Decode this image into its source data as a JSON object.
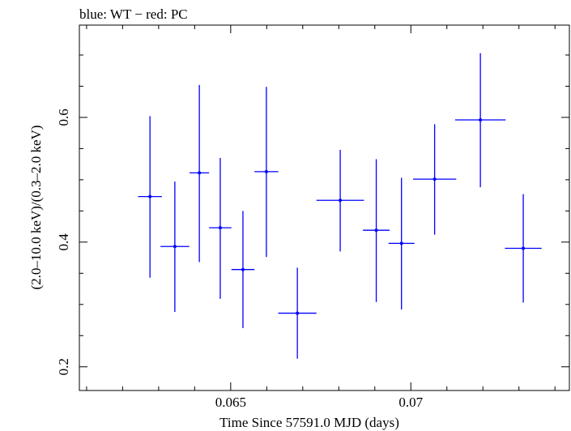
{
  "chart_data": {
    "type": "scatter",
    "title": "blue: WT − red: PC",
    "xlabel": "Time Since 57591.0 MJD (days)",
    "ylabel": "(2.0–10.0 keV)/(0.3–2.0 keV)",
    "xlim": [
      0.0608,
      0.0744
    ],
    "ylim": [
      0.162,
      0.748
    ],
    "x_ticks": [
      0.065,
      0.07
    ],
    "x_tick_labels": [
      "0.065",
      "0.07"
    ],
    "y_ticks": [
      0.2,
      0.4,
      0.6
    ],
    "y_tick_labels": [
      "0.2",
      "0.4",
      "0.6"
    ],
    "grid": false,
    "series": [
      {
        "color": "#0000ff",
        "points": [
          {
            "x": 0.06276,
            "xerr": 0.00033,
            "y": 0.473,
            "yerr_low": 0.13,
            "yerr_high": 0.129
          },
          {
            "x": 0.06345,
            "xerr": 0.0004,
            "y": 0.393,
            "yerr_low": 0.105,
            "yerr_high": 0.104
          },
          {
            "x": 0.06413,
            "xerr": 0.00027,
            "y": 0.511,
            "yerr_low": 0.143,
            "yerr_high": 0.141
          },
          {
            "x": 0.06471,
            "xerr": 0.00031,
            "y": 0.423,
            "yerr_low": 0.114,
            "yerr_high": 0.112
          },
          {
            "x": 0.06534,
            "xerr": 0.00032,
            "y": 0.356,
            "yerr_low": 0.094,
            "yerr_high": 0.094
          },
          {
            "x": 0.06599,
            "xerr": 0.00033,
            "y": 0.513,
            "yerr_low": 0.137,
            "yerr_high": 0.136
          },
          {
            "x": 0.06685,
            "xerr": 0.00053,
            "y": 0.286,
            "yerr_low": 0.073,
            "yerr_high": 0.073
          },
          {
            "x": 0.06804,
            "xerr": 0.00066,
            "y": 0.467,
            "yerr_low": 0.082,
            "yerr_high": 0.081
          },
          {
            "x": 0.06904,
            "xerr": 0.00037,
            "y": 0.419,
            "yerr_low": 0.115,
            "yerr_high": 0.114
          },
          {
            "x": 0.06974,
            "xerr": 0.00036,
            "y": 0.398,
            "yerr_low": 0.106,
            "yerr_high": 0.105
          },
          {
            "x": 0.07066,
            "xerr": 0.0006,
            "y": 0.501,
            "yerr_low": 0.089,
            "yerr_high": 0.088
          },
          {
            "x": 0.07193,
            "xerr": 0.0007,
            "y": 0.596,
            "yerr_low": 0.108,
            "yerr_high": 0.107
          },
          {
            "x": 0.07312,
            "xerr": 0.00051,
            "y": 0.39,
            "yerr_low": 0.087,
            "yerr_high": 0.087
          }
        ]
      }
    ]
  }
}
